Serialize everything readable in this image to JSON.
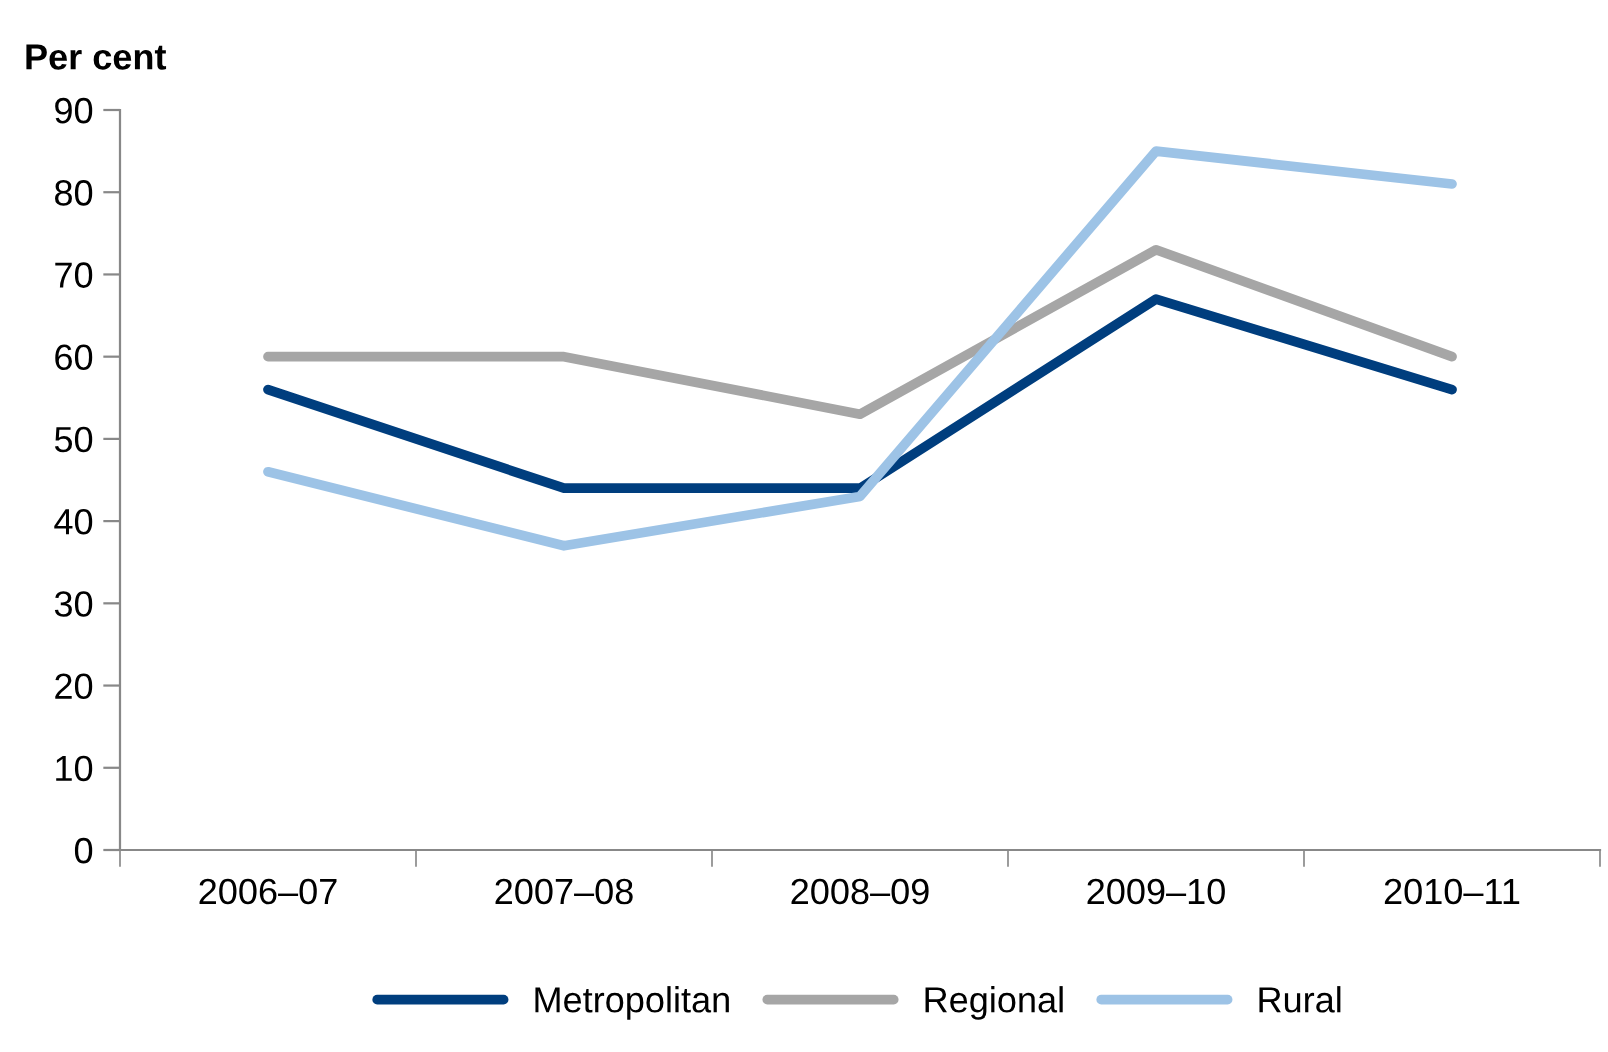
{
  "chart_data": {
    "type": "line",
    "ylabel": "Per cent",
    "categories": [
      "2006–07",
      "2007–08",
      "2008–09",
      "2009–10",
      "2010–11"
    ],
    "series": [
      {
        "name": "Metropolitan",
        "color": "#003e7e",
        "values": [
          56,
          44,
          44,
          67,
          56
        ]
      },
      {
        "name": "Regional",
        "color": "#a6a6a6",
        "values": [
          60,
          60,
          53,
          73,
          60
        ]
      },
      {
        "name": "Rural",
        "color": "#9dc3e6",
        "values": [
          46,
          37,
          43,
          85,
          81
        ]
      }
    ],
    "ylim": [
      0,
      90
    ],
    "yticks": [
      0,
      10,
      20,
      30,
      40,
      50,
      60,
      70,
      80,
      90
    ],
    "grid": false,
    "legend": "bottom",
    "marker": "none",
    "line_style": "solid"
  }
}
